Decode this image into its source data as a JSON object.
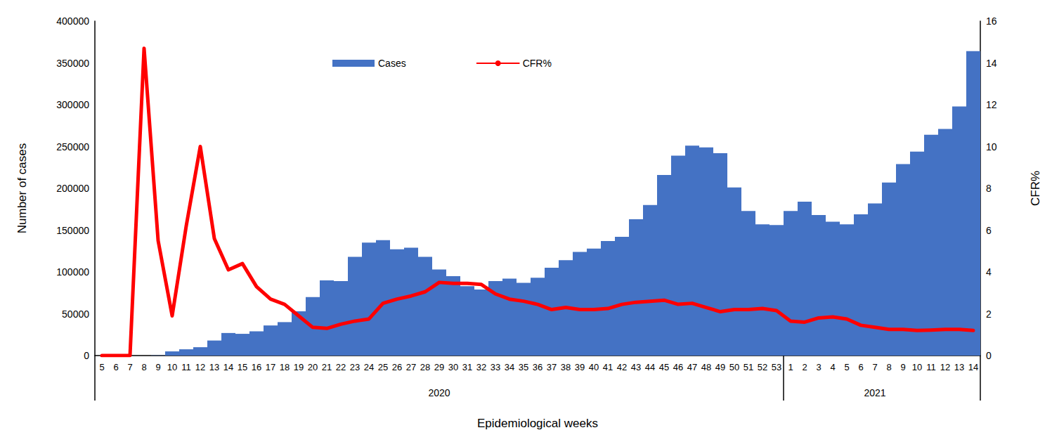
{
  "chart_data": {
    "type": "bar",
    "x_label": "Epidemiological weeks",
    "y_label": "Number of cases",
    "y2_label": "CFR%",
    "categories": [
      "5",
      "6",
      "7",
      "8",
      "9",
      "10",
      "11",
      "12",
      "13",
      "14",
      "15",
      "16",
      "17",
      "18",
      "19",
      "20",
      "21",
      "22",
      "23",
      "24",
      "25",
      "26",
      "27",
      "28",
      "29",
      "30",
      "31",
      "32",
      "33",
      "34",
      "35",
      "36",
      "37",
      "38",
      "39",
      "40",
      "41",
      "42",
      "43",
      "44",
      "45",
      "46",
      "47",
      "48",
      "49",
      "50",
      "51",
      "52",
      "53",
      "1",
      "2",
      "3",
      "4",
      "5",
      "6",
      "7",
      "8",
      "9",
      "10",
      "11",
      "12",
      "13",
      "14"
    ],
    "category_groups": [
      "2020",
      "2020",
      "2020",
      "2020",
      "2020",
      "2020",
      "2020",
      "2020",
      "2020",
      "2020",
      "2020",
      "2020",
      "2020",
      "2020",
      "2020",
      "2020",
      "2020",
      "2020",
      "2020",
      "2020",
      "2020",
      "2020",
      "2020",
      "2020",
      "2020",
      "2020",
      "2020",
      "2020",
      "2020",
      "2020",
      "2020",
      "2020",
      "2020",
      "2020",
      "2020",
      "2020",
      "2020",
      "2020",
      "2020",
      "2020",
      "2020",
      "2020",
      "2020",
      "2020",
      "2020",
      "2020",
      "2020",
      "2020",
      "2020",
      "2021",
      "2021",
      "2021",
      "2021",
      "2021",
      "2021",
      "2021",
      "2021",
      "2021",
      "2021",
      "2021",
      "2021",
      "2021",
      "2021"
    ],
    "series": [
      {
        "name": "Cases",
        "type": "bar",
        "color": "#4472c4",
        "values": [
          0,
          0,
          0,
          0,
          300,
          5000,
          7500,
          10000,
          18000,
          27000,
          26000,
          29000,
          36000,
          40000,
          53000,
          70000,
          90000,
          89000,
          118000,
          135000,
          138000,
          127000,
          129000,
          118000,
          103000,
          95000,
          83000,
          79000,
          89000,
          92000,
          87000,
          93000,
          105000,
          114000,
          124000,
          128000,
          137000,
          142000,
          163000,
          180000,
          216000,
          239000,
          251000,
          249000,
          242000,
          201000,
          173000,
          157000,
          156000,
          173000,
          184000,
          168000,
          160000,
          157000,
          169000,
          182000,
          207000,
          229000,
          244000,
          264000,
          271000,
          298000,
          364000
        ]
      },
      {
        "name": "CFR%",
        "type": "line",
        "axis": "y2",
        "color": "#ff0000",
        "marker": "none",
        "line_style": "solid",
        "values": [
          0,
          0,
          0,
          14.7,
          5.5,
          1.9,
          6.2,
          10.0,
          5.6,
          4.1,
          4.4,
          3.3,
          2.7,
          2.45,
          1.9,
          1.35,
          1.3,
          1.5,
          1.65,
          1.75,
          2.5,
          2.7,
          2.85,
          3.05,
          3.5,
          3.45,
          3.45,
          3.4,
          2.95,
          2.7,
          2.6,
          2.45,
          2.2,
          2.3,
          2.2,
          2.2,
          2.25,
          2.45,
          2.55,
          2.6,
          2.65,
          2.45,
          2.5,
          2.3,
          2.1,
          2.2,
          2.2,
          2.25,
          2.15,
          1.65,
          1.6,
          1.8,
          1.85,
          1.75,
          1.45,
          1.35,
          1.25,
          1.25,
          1.2,
          1.22,
          1.25,
          1.25,
          1.2
        ]
      }
    ],
    "ylim": [
      0,
      400000
    ],
    "yticks": [
      0,
      50000,
      100000,
      150000,
      200000,
      250000,
      300000,
      350000,
      400000
    ],
    "y2lim": [
      0,
      16
    ],
    "y2ticks": [
      0,
      2,
      4,
      6,
      8,
      10,
      12,
      14,
      16
    ],
    "grid": false,
    "legend": "top"
  }
}
